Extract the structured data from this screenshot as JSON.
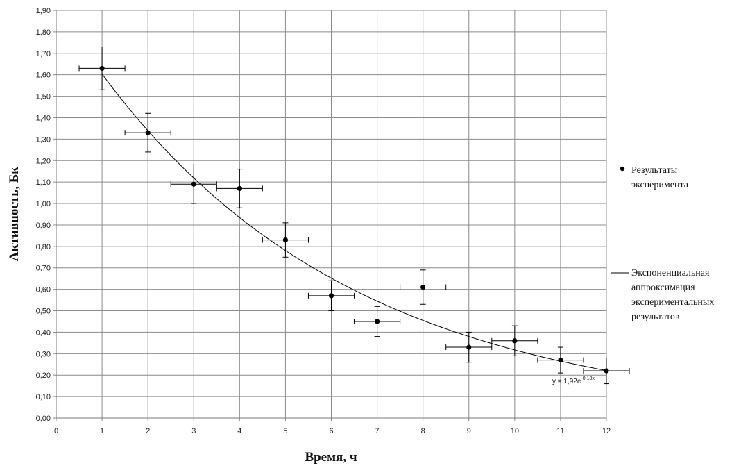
{
  "chart_data": {
    "type": "scatter",
    "xlabel": "Время, ч",
    "ylabel": "Активность, Бк",
    "xlim": [
      0,
      12
    ],
    "ylim": [
      0,
      1.9
    ],
    "x_ticks": [
      "0",
      "1",
      "2",
      "3",
      "4",
      "5",
      "6",
      "7",
      "8",
      "9",
      "10",
      "11",
      "12"
    ],
    "y_ticks": [
      "0,00",
      "0,10",
      "0,20",
      "0,30",
      "0,40",
      "0,50",
      "0,60",
      "0,70",
      "0,80",
      "0,90",
      "1,00",
      "1,10",
      "1,20",
      "1,30",
      "1,40",
      "1,50",
      "1,60",
      "1,70",
      "1,80",
      "1,90"
    ],
    "grid": true,
    "legend_position": "right",
    "series": [
      {
        "name": "Результаты эксперимента",
        "kind": "points-with-error-bars",
        "x": [
          1,
          2,
          3,
          4,
          5,
          6,
          7,
          8,
          9,
          10,
          11,
          12
        ],
        "y": [
          1.63,
          1.33,
          1.09,
          1.07,
          0.83,
          0.57,
          0.45,
          0.61,
          0.33,
          0.36,
          0.27,
          0.22
        ],
        "x_error": 0.5,
        "y_error": [
          0.1,
          0.09,
          0.09,
          0.09,
          0.08,
          0.07,
          0.07,
          0.08,
          0.07,
          0.07,
          0.06,
          0.06
        ]
      },
      {
        "name": "Экспоненциальная аппроксимация экспериментальных результатов",
        "kind": "exponential-fit",
        "a": 1.92,
        "b": -0.18,
        "equation": "y = 1,92e",
        "equation_exponent": "-0,18x"
      }
    ],
    "legend": [
      {
        "marker": "dot",
        "lines": [
          "Результаты",
          "эксперимента"
        ]
      },
      {
        "marker": "line",
        "lines": [
          "Экспоненциальная",
          "аппроксимация",
          "экспериментальных",
          "результатов"
        ]
      }
    ]
  }
}
